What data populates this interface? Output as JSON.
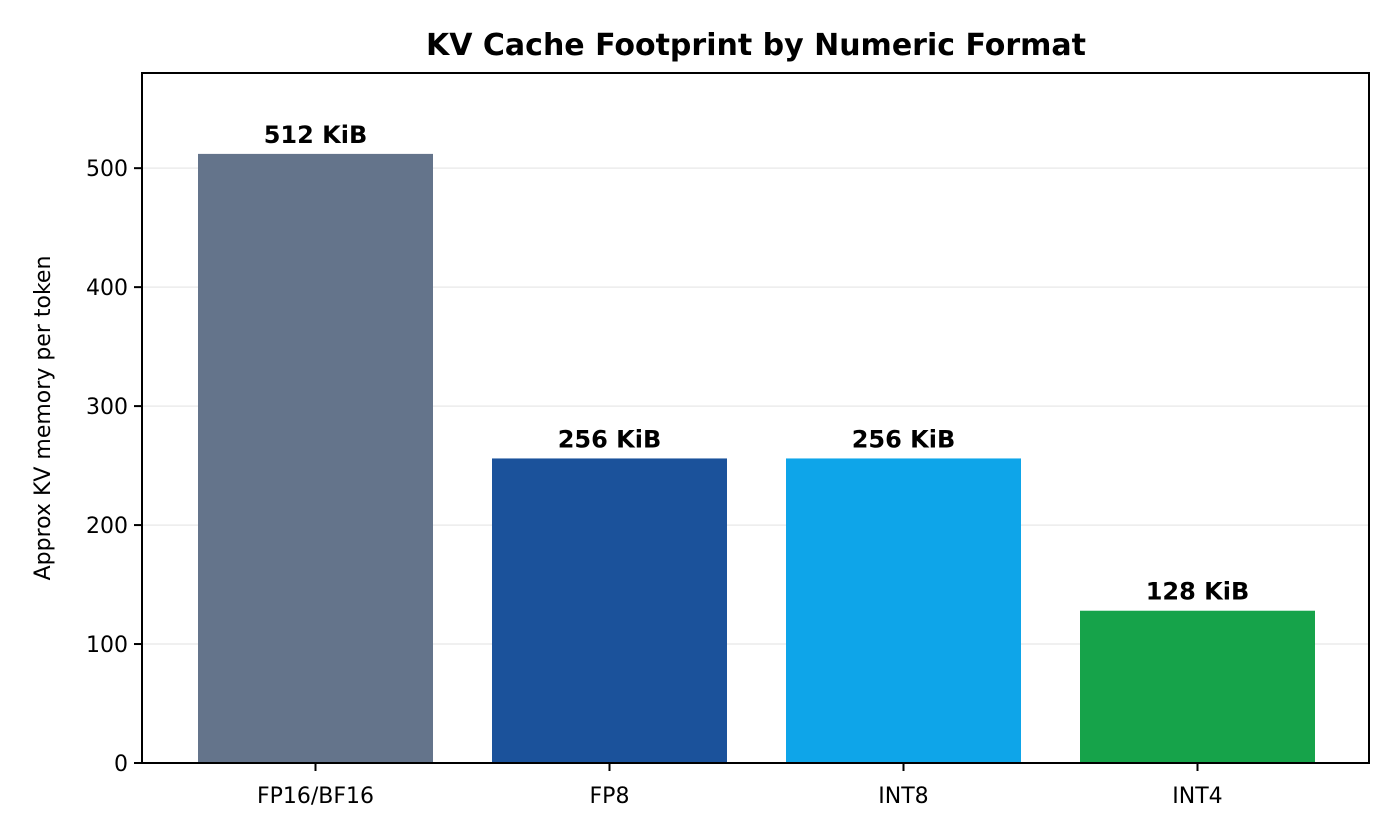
{
  "chart_data": {
    "type": "bar",
    "title": "KV Cache Footprint by Numeric Format",
    "xlabel": "",
    "ylabel": "Approx KV memory per token",
    "categories": [
      "FP16/BF16",
      "FP8",
      "INT8",
      "INT4"
    ],
    "values": [
      512,
      256,
      256,
      128
    ],
    "data_labels": [
      "512 KiB",
      "256 KiB",
      "256 KiB",
      "128 KiB"
    ],
    "colors": [
      "#64748b",
      "#1b529b",
      "#0ea5e9",
      "#16a34a"
    ],
    "yticks": [
      0,
      100,
      200,
      300,
      400,
      500
    ],
    "ylim": [
      0,
      580
    ],
    "grid": "horizontal"
  }
}
